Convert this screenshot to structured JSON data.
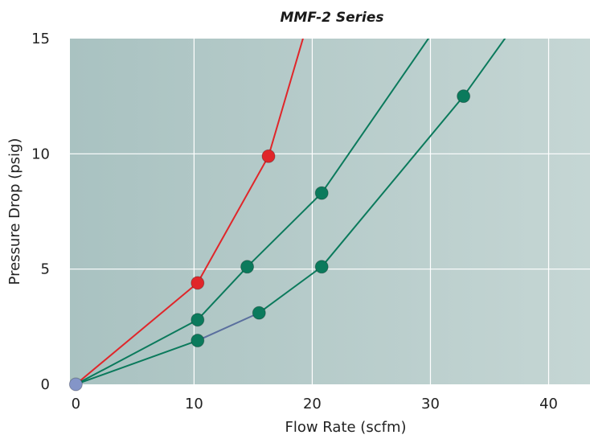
{
  "chart_data": {
    "type": "line",
    "title": "MMF-2 Series",
    "xlabel": "Flow Rate (scfm)",
    "ylabel": "Pressure Drop (psig)",
    "xlim": [
      -0.5,
      43.5
    ],
    "ylim": [
      0,
      15
    ],
    "xticks": [
      "0",
      "10",
      "20",
      "30",
      "40"
    ],
    "yticks": [
      "0",
      "5",
      "10",
      "15"
    ],
    "grid": true,
    "background_gradient": [
      "#a9c2c1",
      "#c5d6d4"
    ],
    "series": [
      {
        "color": "#e0262a",
        "points": [
          [
            0,
            0
          ],
          [
            10.3,
            4.4
          ],
          [
            16.3,
            9.9
          ],
          [
            19.5,
            15.5
          ]
        ]
      },
      {
        "color": "#0b7a5c",
        "points": [
          [
            0,
            0
          ],
          [
            10.3,
            2.8
          ],
          [
            14.5,
            5.1
          ],
          [
            20.8,
            8.3
          ],
          [
            30.5,
            15.5
          ]
        ]
      },
      {
        "color": "#0b7a5c",
        "points": [
          [
            0,
            0
          ],
          [
            10.3,
            1.9
          ],
          [
            15.5,
            3.1
          ],
          [
            20.8,
            5.1
          ],
          [
            32.8,
            12.5
          ],
          [
            37.0,
            15.5
          ]
        ],
        "segment_colors": [
          "#0b7a5c",
          "#5a6f9e",
          "#0b7a5c",
          "#0b7a5c",
          "#0b7a5c"
        ]
      }
    ],
    "markers": [
      {
        "x": 0,
        "y": 0,
        "color": "#8495c8"
      },
      {
        "x": 10.3,
        "y": 4.4,
        "color": "#e0262a"
      },
      {
        "x": 16.3,
        "y": 9.9,
        "color": "#e0262a"
      },
      {
        "x": 10.3,
        "y": 2.8,
        "color": "#0b7a5c"
      },
      {
        "x": 14.5,
        "y": 5.1,
        "color": "#0b7a5c"
      },
      {
        "x": 20.8,
        "y": 8.3,
        "color": "#0b7a5c"
      },
      {
        "x": 10.3,
        "y": 1.9,
        "color": "#0b7a5c"
      },
      {
        "x": 15.5,
        "y": 3.1,
        "color": "#0b7a5c"
      },
      {
        "x": 20.8,
        "y": 5.1,
        "color": "#0b7a5c"
      },
      {
        "x": 32.8,
        "y": 12.5,
        "color": "#0b7a5c"
      }
    ]
  }
}
